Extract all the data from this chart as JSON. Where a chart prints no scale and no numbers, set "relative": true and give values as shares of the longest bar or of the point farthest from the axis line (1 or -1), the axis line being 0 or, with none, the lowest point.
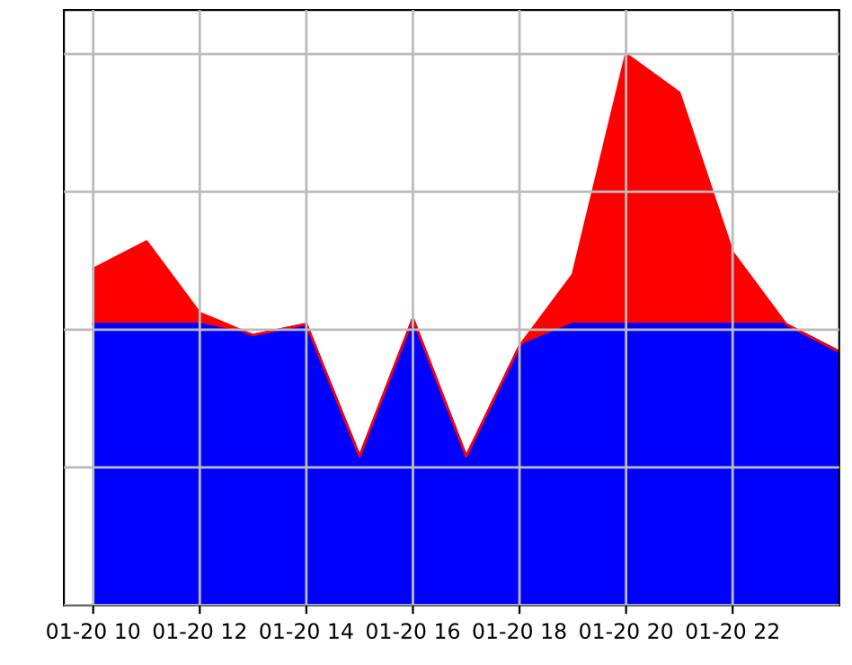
{
  "chart_data": {
    "type": "area",
    "relative": true,
    "stacked": true,
    "categories": [
      "01-20 10",
      null,
      "01-20 12",
      null,
      "01-20 14",
      null,
      "01-20 16",
      null,
      "01-20 18",
      null,
      "01-20 20",
      null,
      "01-20 22",
      null,
      null
    ],
    "series": [
      {
        "color": "#0000ff",
        "values": [
          0.51,
          0.51,
          0.51,
          0.49,
          0.51,
          0.27,
          0.52,
          0.27,
          0.47,
          0.51,
          0.51,
          0.51,
          0.51,
          0.51,
          0.46
        ]
      },
      {
        "color": "#ff0000",
        "values": [
          0.1,
          0.15,
          0.02,
          0,
          0,
          0,
          0,
          0,
          0,
          0.09,
          0.49,
          0.42,
          0.13,
          0,
          0
        ]
      }
    ],
    "grid": true
  }
}
